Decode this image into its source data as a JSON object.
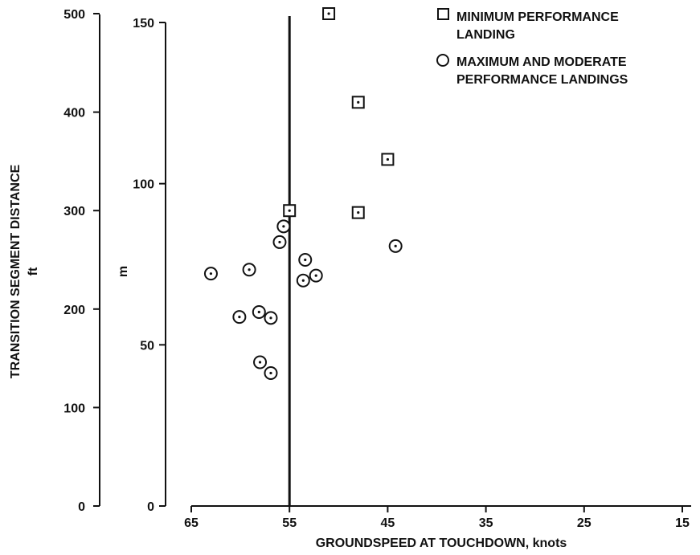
{
  "chart_data": {
    "type": "scatter",
    "xlabel": "GROUNDSPEED AT TOUCHDOWN, knots",
    "ylabel": "TRANSITION SEGMENT DISTANCE",
    "ylabel_unit": "ft",
    "y2label": "m",
    "xlim": [
      65,
      15
    ],
    "x_ticks": [
      65,
      55,
      45,
      35,
      25,
      15
    ],
    "ylim_ft": [
      0,
      500
    ],
    "y_ticks_ft": [
      0,
      100,
      200,
      300,
      400,
      500
    ],
    "ylim_m": [
      0,
      150
    ],
    "y_ticks_m": [
      0,
      50,
      100,
      150
    ],
    "vertical_line_x": 55,
    "series": [
      {
        "name": "MINIMUM PERFORMANCE LANDING",
        "marker": "square",
        "points": [
          {
            "x": 51,
            "y": 500
          },
          {
            "x": 48,
            "y": 410
          },
          {
            "x": 45,
            "y": 352
          },
          {
            "x": 55,
            "y": 300
          },
          {
            "x": 48,
            "y": 298
          }
        ]
      },
      {
        "name": "MAXIMUM AND MODERATE PERFORMANCE LANDINGS",
        "marker": "circle",
        "points": [
          {
            "x": 55.6,
            "y": 284
          },
          {
            "x": 56,
            "y": 268
          },
          {
            "x": 44.2,
            "y": 264
          },
          {
            "x": 53.4,
            "y": 250
          },
          {
            "x": 59.1,
            "y": 240
          },
          {
            "x": 63,
            "y": 236
          },
          {
            "x": 52.3,
            "y": 234
          },
          {
            "x": 53.6,
            "y": 229
          },
          {
            "x": 58.1,
            "y": 197
          },
          {
            "x": 60.1,
            "y": 192
          },
          {
            "x": 56.9,
            "y": 191
          },
          {
            "x": 58.0,
            "y": 146
          },
          {
            "x": 56.9,
            "y": 135
          }
        ]
      }
    ]
  }
}
